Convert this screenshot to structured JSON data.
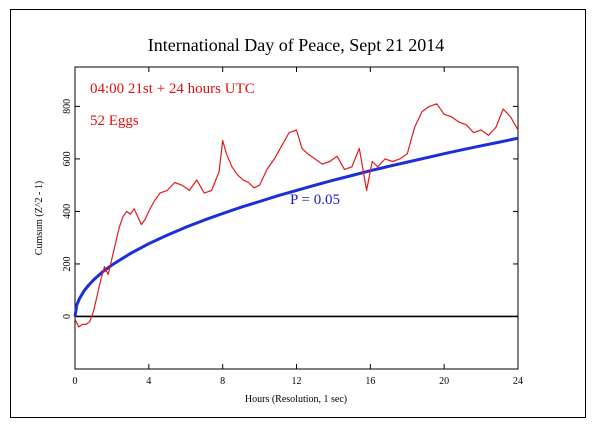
{
  "chart_data": {
    "type": "line",
    "title": "International Day of Peace, Sept 21 2014",
    "xlabel": "Hours (Resolution, 1 sec)",
    "ylabel": "Cumsum (Z^2 - 1)",
    "xlim": [
      0,
      24
    ],
    "ylim": [
      -200,
      950
    ],
    "xticks": [
      0,
      4,
      8,
      12,
      16,
      20,
      24
    ],
    "yticks": [
      0,
      200,
      400,
      600,
      800
    ],
    "grid": false,
    "annotations": [
      {
        "text": "04:00 21st + 24 hours UTC",
        "color": "#dd1111"
      },
      {
        "text": "52 Eggs",
        "color": "#dd1111"
      },
      {
        "text": "P = 0.05",
        "color": "#1a1ad0"
      }
    ],
    "series": [
      {
        "color": "#e31b1b",
        "x": [
          0,
          0.2,
          0.4,
          0.6,
          0.8,
          1.0,
          1.2,
          1.4,
          1.6,
          1.8,
          2.0,
          2.2,
          2.4,
          2.6,
          2.8,
          3.0,
          3.2,
          3.4,
          3.6,
          3.8,
          4.0,
          4.3,
          4.6,
          5.0,
          5.4,
          5.8,
          6.2,
          6.6,
          7.0,
          7.4,
          7.8,
          8.0,
          8.2,
          8.5,
          8.8,
          9.1,
          9.4,
          9.7,
          10.0,
          10.4,
          10.8,
          11.2,
          11.6,
          12.0,
          12.3,
          12.6,
          13.0,
          13.4,
          13.8,
          14.2,
          14.6,
          15.0,
          15.4,
          15.8,
          16.1,
          16.4,
          16.8,
          17.2,
          17.6,
          18.0,
          18.4,
          18.8,
          19.2,
          19.6,
          20.0,
          20.4,
          20.8,
          21.2,
          21.6,
          22.0,
          22.4,
          22.8,
          23.2,
          23.6,
          24.0
        ],
        "y": [
          -10,
          -40,
          -30,
          -30,
          -20,
          20,
          80,
          140,
          190,
          160,
          220,
          280,
          340,
          380,
          400,
          390,
          410,
          380,
          350,
          370,
          400,
          440,
          470,
          480,
          510,
          500,
          480,
          520,
          470,
          480,
          550,
          670,
          620,
          570,
          540,
          520,
          510,
          490,
          500,
          560,
          600,
          650,
          700,
          710,
          640,
          620,
          600,
          580,
          590,
          610,
          560,
          570,
          640,
          480,
          590,
          570,
          600,
          590,
          600,
          620,
          720,
          780,
          800,
          810,
          770,
          760,
          740,
          730,
          700,
          710,
          690,
          720,
          790,
          760,
          710
        ]
      },
      {
        "name": "P = 0.05",
        "color": "#1a2fd8",
        "x": [
          0,
          0.1,
          0.25,
          0.5,
          0.75,
          1,
          1.5,
          2,
          3,
          4,
          5,
          6,
          7,
          8,
          9,
          10,
          11,
          12,
          13,
          14,
          15,
          16,
          17,
          18,
          19,
          20,
          21,
          22,
          23,
          24
        ],
        "y": [
          0,
          44,
          69,
          98,
          120,
          139,
          170,
          196,
          240,
          277,
          310,
          340,
          367,
          392,
          416,
          438,
          460,
          480,
          500,
          519,
          537,
          555,
          572,
          588,
          604,
          620,
          635,
          650,
          664,
          679
        ]
      }
    ]
  }
}
